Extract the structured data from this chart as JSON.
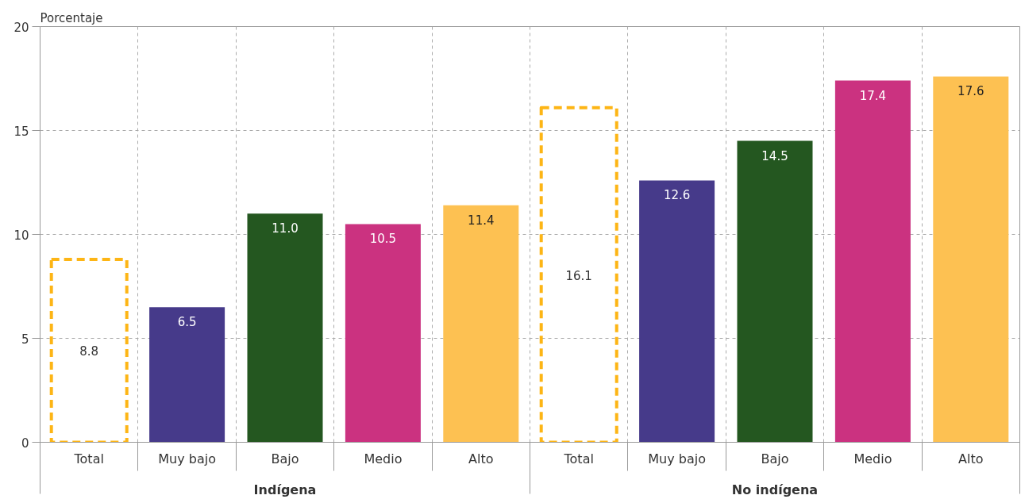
{
  "chart_data": {
    "type": "bar",
    "ylabel": "Porcentaje",
    "categories": [
      "Total",
      "Muy bajo",
      "Bajo",
      "Medio",
      "Alto",
      "Total",
      "Muy bajo",
      "Bajo",
      "Medio",
      "Alto"
    ],
    "stacked": true,
    "series": [
      {
        "color": "#fdb515",
        "line_style": "dashed",
        "values": [
          8.8,
          null,
          null,
          null,
          null,
          16.1,
          null,
          null,
          null,
          null
        ],
        "value_labels": [
          "8.8",
          null,
          null,
          null,
          null,
          "16.1",
          null,
          null,
          null,
          null
        ]
      },
      {
        "colors": [
          null,
          "#463a8a",
          "#245720",
          "#cb3280",
          "#fdc152",
          null,
          "#463a8a",
          "#245720",
          "#cb3280",
          "#fdc152"
        ],
        "values": [
          null,
          6.5,
          11.0,
          10.5,
          11.4,
          null,
          12.6,
          14.5,
          17.4,
          17.6
        ],
        "value_labels": [
          null,
          "6.5",
          "11.0",
          "10.5",
          "11.4",
          null,
          "12.6",
          "14.5",
          "17.4",
          "17.6"
        ]
      }
    ],
    "ylim": [
      0,
      20
    ],
    "yticks": [
      0,
      5,
      10,
      15,
      20
    ],
    "grid": true,
    "annotations": [
      "Indígena",
      "No indígena"
    ]
  }
}
